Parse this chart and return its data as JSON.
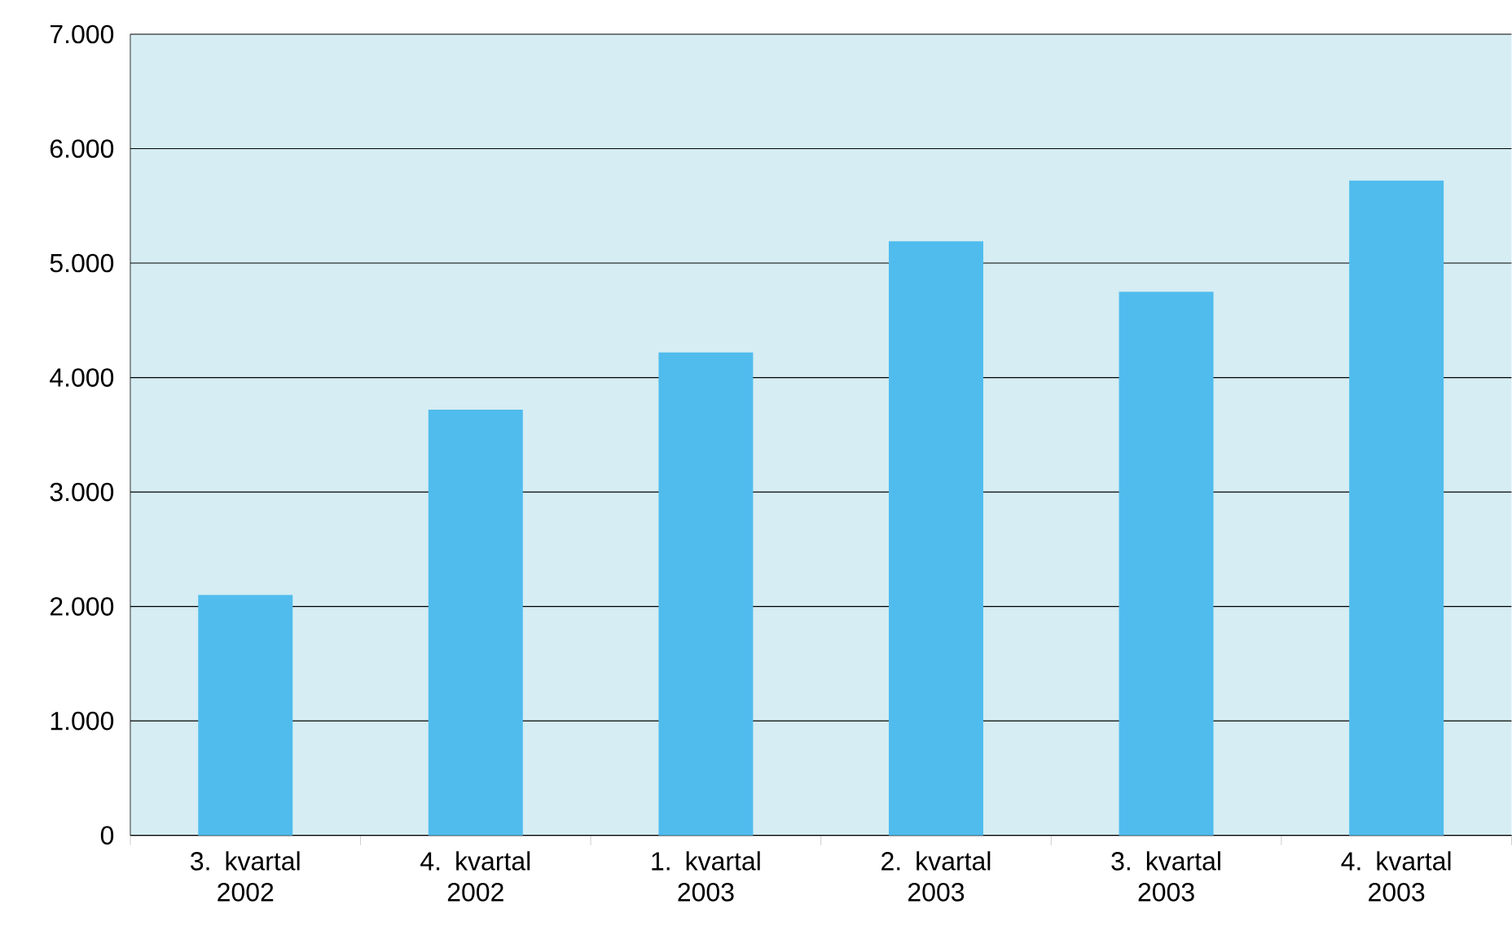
{
  "chart_data": {
    "type": "bar",
    "categories": [
      "3. kvartal 2002",
      "4. kvartal 2002",
      "1. kvartal 2003",
      "2. kvartal 2003",
      "3. kvartal 2003",
      "4. kvartal 2003"
    ],
    "values": [
      2100,
      3720,
      4220,
      5190,
      4750,
      5720
    ],
    "color": "#50bced",
    "ylim": [
      0,
      7000
    ],
    "yticks": [
      {
        "value": 0,
        "label": "0"
      },
      {
        "value": 1000,
        "label": "1.000"
      },
      {
        "value": 2000,
        "label": "2.000"
      },
      {
        "value": 3000,
        "label": "3.000"
      },
      {
        "value": 4000,
        "label": "4.000"
      },
      {
        "value": 5000,
        "label": "5.000"
      },
      {
        "value": 6000,
        "label": "6.000"
      },
      {
        "value": 7000,
        "label": "7.000"
      }
    ],
    "grid": "y"
  }
}
